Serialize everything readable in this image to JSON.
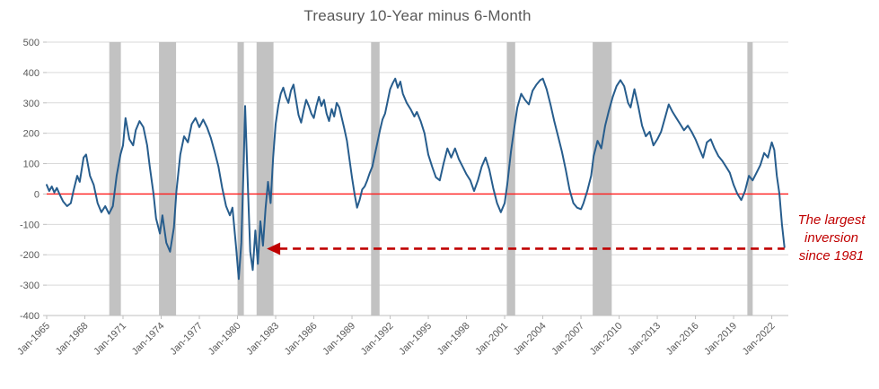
{
  "chart_data": {
    "type": "line",
    "title": "Treasury 10-Year minus 6-Month",
    "xlabel": "",
    "ylabel": "",
    "ylim": [
      -400,
      500
    ],
    "y_ticks": [
      500,
      400,
      300,
      200,
      100,
      0,
      -100,
      -200,
      -300,
      -400
    ],
    "x_domain": [
      1965,
      2023.3
    ],
    "x_ticks": [
      {
        "year": 1965,
        "label": "Jan-1965"
      },
      {
        "year": 1968,
        "label": "Jan-1968"
      },
      {
        "year": 1971,
        "label": "Jan-1971"
      },
      {
        "year": 1974,
        "label": "Jan-1974"
      },
      {
        "year": 1977,
        "label": "Jan-1977"
      },
      {
        "year": 1980,
        "label": "Jan-1980"
      },
      {
        "year": 1983,
        "label": "Jan-1983"
      },
      {
        "year": 1986,
        "label": "Jan-1986"
      },
      {
        "year": 1989,
        "label": "Jan-1989"
      },
      {
        "year": 1992,
        "label": "Jan-1992"
      },
      {
        "year": 1995,
        "label": "Jan-1995"
      },
      {
        "year": 1998,
        "label": "Jan-1998"
      },
      {
        "year": 2001,
        "label": "Jan-2001"
      },
      {
        "year": 2004,
        "label": "Jan-2004"
      },
      {
        "year": 2007,
        "label": "Jan-2007"
      },
      {
        "year": 2010,
        "label": "Jan-2010"
      },
      {
        "year": 2013,
        "label": "Jan-2013"
      },
      {
        "year": 2016,
        "label": "Jan-2016"
      },
      {
        "year": 2019,
        "label": "Jan-2019"
      },
      {
        "year": 2022,
        "label": "Jan-2022"
      }
    ],
    "points": [
      [
        1965.0,
        30
      ],
      [
        1965.2,
        10
      ],
      [
        1965.4,
        25
      ],
      [
        1965.6,
        5
      ],
      [
        1965.8,
        20
      ],
      [
        1966.0,
        0
      ],
      [
        1966.3,
        -25
      ],
      [
        1966.6,
        -40
      ],
      [
        1966.9,
        -30
      ],
      [
        1967.1,
        10
      ],
      [
        1967.4,
        60
      ],
      [
        1967.6,
        40
      ],
      [
        1967.9,
        120
      ],
      [
        1968.1,
        130
      ],
      [
        1968.4,
        60
      ],
      [
        1968.7,
        30
      ],
      [
        1969.0,
        -30
      ],
      [
        1969.3,
        -60
      ],
      [
        1969.6,
        -40
      ],
      [
        1969.9,
        -65
      ],
      [
        1970.2,
        -40
      ],
      [
        1970.5,
        60
      ],
      [
        1970.8,
        130
      ],
      [
        1971.0,
        160
      ],
      [
        1971.2,
        250
      ],
      [
        1971.5,
        180
      ],
      [
        1971.8,
        160
      ],
      [
        1972.0,
        210
      ],
      [
        1972.3,
        240
      ],
      [
        1972.6,
        220
      ],
      [
        1972.9,
        160
      ],
      [
        1973.1,
        90
      ],
      [
        1973.4,
        0
      ],
      [
        1973.6,
        -80
      ],
      [
        1973.9,
        -130
      ],
      [
        1974.1,
        -70
      ],
      [
        1974.4,
        -160
      ],
      [
        1974.7,
        -190
      ],
      [
        1975.0,
        -110
      ],
      [
        1975.2,
        10
      ],
      [
        1975.5,
        130
      ],
      [
        1975.8,
        190
      ],
      [
        1976.1,
        170
      ],
      [
        1976.4,
        230
      ],
      [
        1976.7,
        250
      ],
      [
        1977.0,
        220
      ],
      [
        1977.3,
        245
      ],
      [
        1977.6,
        220
      ],
      [
        1977.9,
        185
      ],
      [
        1978.2,
        140
      ],
      [
        1978.5,
        90
      ],
      [
        1978.8,
        20
      ],
      [
        1979.1,
        -40
      ],
      [
        1979.4,
        -70
      ],
      [
        1979.6,
        -45
      ],
      [
        1979.9,
        -180
      ],
      [
        1980.1,
        -280
      ],
      [
        1980.3,
        -160
      ],
      [
        1980.5,
        120
      ],
      [
        1980.6,
        290
      ],
      [
        1980.8,
        40
      ],
      [
        1981.0,
        -190
      ],
      [
        1981.2,
        -250
      ],
      [
        1981.4,
        -120
      ],
      [
        1981.6,
        -230
      ],
      [
        1981.8,
        -90
      ],
      [
        1982.0,
        -170
      ],
      [
        1982.2,
        -50
      ],
      [
        1982.4,
        40
      ],
      [
        1982.6,
        -30
      ],
      [
        1982.8,
        120
      ],
      [
        1983.0,
        230
      ],
      [
        1983.2,
        290
      ],
      [
        1983.4,
        330
      ],
      [
        1983.6,
        350
      ],
      [
        1983.8,
        320
      ],
      [
        1984.0,
        300
      ],
      [
        1984.2,
        340
      ],
      [
        1984.4,
        360
      ],
      [
        1984.6,
        310
      ],
      [
        1984.8,
        260
      ],
      [
        1985.0,
        235
      ],
      [
        1985.2,
        275
      ],
      [
        1985.4,
        310
      ],
      [
        1985.6,
        290
      ],
      [
        1985.8,
        265
      ],
      [
        1986.0,
        250
      ],
      [
        1986.2,
        290
      ],
      [
        1986.4,
        320
      ],
      [
        1986.6,
        290
      ],
      [
        1986.8,
        310
      ],
      [
        1987.0,
        265
      ],
      [
        1987.2,
        240
      ],
      [
        1987.4,
        280
      ],
      [
        1987.6,
        255
      ],
      [
        1987.8,
        300
      ],
      [
        1988.0,
        285
      ],
      [
        1988.2,
        250
      ],
      [
        1988.4,
        215
      ],
      [
        1988.6,
        175
      ],
      [
        1988.8,
        115
      ],
      [
        1989.0,
        55
      ],
      [
        1989.2,
        0
      ],
      [
        1989.4,
        -45
      ],
      [
        1989.6,
        -20
      ],
      [
        1989.8,
        15
      ],
      [
        1990.0,
        25
      ],
      [
        1990.2,
        45
      ],
      [
        1990.4,
        70
      ],
      [
        1990.6,
        90
      ],
      [
        1990.8,
        130
      ],
      [
        1991.0,
        170
      ],
      [
        1991.2,
        210
      ],
      [
        1991.4,
        245
      ],
      [
        1991.6,
        265
      ],
      [
        1991.8,
        305
      ],
      [
        1992.0,
        345
      ],
      [
        1992.2,
        365
      ],
      [
        1992.4,
        380
      ],
      [
        1992.6,
        350
      ],
      [
        1992.8,
        370
      ],
      [
        1993.0,
        330
      ],
      [
        1993.3,
        300
      ],
      [
        1993.6,
        280
      ],
      [
        1993.9,
        255
      ],
      [
        1994.1,
        270
      ],
      [
        1994.4,
        240
      ],
      [
        1994.7,
        200
      ],
      [
        1995.0,
        130
      ],
      [
        1995.3,
        90
      ],
      [
        1995.6,
        55
      ],
      [
        1995.9,
        45
      ],
      [
        1996.2,
        100
      ],
      [
        1996.5,
        150
      ],
      [
        1996.8,
        120
      ],
      [
        1997.1,
        150
      ],
      [
        1997.4,
        115
      ],
      [
        1997.7,
        90
      ],
      [
        1998.0,
        65
      ],
      [
        1998.3,
        45
      ],
      [
        1998.6,
        10
      ],
      [
        1998.9,
        45
      ],
      [
        1999.2,
        90
      ],
      [
        1999.5,
        120
      ],
      [
        1999.8,
        80
      ],
      [
        2000.1,
        20
      ],
      [
        2000.4,
        -30
      ],
      [
        2000.7,
        -60
      ],
      [
        2001.0,
        -30
      ],
      [
        2001.2,
        30
      ],
      [
        2001.5,
        140
      ],
      [
        2001.8,
        230
      ],
      [
        2002.0,
        285
      ],
      [
        2002.3,
        330
      ],
      [
        2002.6,
        310
      ],
      [
        2002.9,
        295
      ],
      [
        2003.2,
        340
      ],
      [
        2003.5,
        360
      ],
      [
        2003.8,
        375
      ],
      [
        2004.0,
        380
      ],
      [
        2004.3,
        345
      ],
      [
        2004.6,
        295
      ],
      [
        2004.9,
        240
      ],
      [
        2005.2,
        190
      ],
      [
        2005.5,
        140
      ],
      [
        2005.8,
        80
      ],
      [
        2006.1,
        15
      ],
      [
        2006.4,
        -30
      ],
      [
        2006.7,
        -45
      ],
      [
        2007.0,
        -50
      ],
      [
        2007.2,
        -30
      ],
      [
        2007.5,
        10
      ],
      [
        2007.8,
        60
      ],
      [
        2008.0,
        125
      ],
      [
        2008.3,
        175
      ],
      [
        2008.6,
        150
      ],
      [
        2008.9,
        225
      ],
      [
        2009.2,
        275
      ],
      [
        2009.5,
        320
      ],
      [
        2009.8,
        355
      ],
      [
        2010.1,
        375
      ],
      [
        2010.4,
        355
      ],
      [
        2010.7,
        300
      ],
      [
        2010.9,
        285
      ],
      [
        2011.2,
        345
      ],
      [
        2011.5,
        290
      ],
      [
        2011.8,
        225
      ],
      [
        2012.1,
        190
      ],
      [
        2012.4,
        205
      ],
      [
        2012.7,
        160
      ],
      [
        2013.0,
        180
      ],
      [
        2013.3,
        205
      ],
      [
        2013.6,
        250
      ],
      [
        2013.9,
        295
      ],
      [
        2014.2,
        270
      ],
      [
        2014.5,
        250
      ],
      [
        2014.8,
        230
      ],
      [
        2015.1,
        210
      ],
      [
        2015.4,
        225
      ],
      [
        2015.7,
        205
      ],
      [
        2016.0,
        180
      ],
      [
        2016.3,
        150
      ],
      [
        2016.6,
        120
      ],
      [
        2016.9,
        170
      ],
      [
        2017.2,
        180
      ],
      [
        2017.5,
        150
      ],
      [
        2017.8,
        125
      ],
      [
        2018.1,
        110
      ],
      [
        2018.4,
        90
      ],
      [
        2018.7,
        70
      ],
      [
        2019.0,
        30
      ],
      [
        2019.3,
        0
      ],
      [
        2019.6,
        -20
      ],
      [
        2019.9,
        10
      ],
      [
        2020.2,
        60
      ],
      [
        2020.5,
        45
      ],
      [
        2020.8,
        70
      ],
      [
        2021.1,
        95
      ],
      [
        2021.4,
        135
      ],
      [
        2021.7,
        120
      ],
      [
        2022.0,
        170
      ],
      [
        2022.2,
        145
      ],
      [
        2022.4,
        60
      ],
      [
        2022.6,
        0
      ],
      [
        2022.8,
        -100
      ],
      [
        2023.0,
        -175
      ]
    ],
    "recessions": [
      [
        1969.92,
        1970.83
      ],
      [
        1973.83,
        1975.17
      ],
      [
        1980.0,
        1980.5
      ],
      [
        1981.5,
        1982.83
      ],
      [
        1990.5,
        1991.17
      ],
      [
        2001.17,
        2001.83
      ],
      [
        2007.92,
        2009.42
      ],
      [
        2020.08,
        2020.5
      ]
    ],
    "zero_line": 0,
    "annotation_arrow": {
      "y": -180,
      "from_x": 2023.0,
      "to_x": 1982.3
    },
    "colors": {
      "line": "#275d8d",
      "zero_line": "#ff1a1a",
      "recession": "#c2c2c2",
      "grid": "#d9d9d9",
      "axis": "#bfbfbf",
      "axis_text": "#595959",
      "annotation": "#c00000",
      "title": "#595959"
    },
    "legend": "none",
    "grid": "horizontal"
  },
  "annotation": {
    "text": "The largest inversion since 1981"
  }
}
